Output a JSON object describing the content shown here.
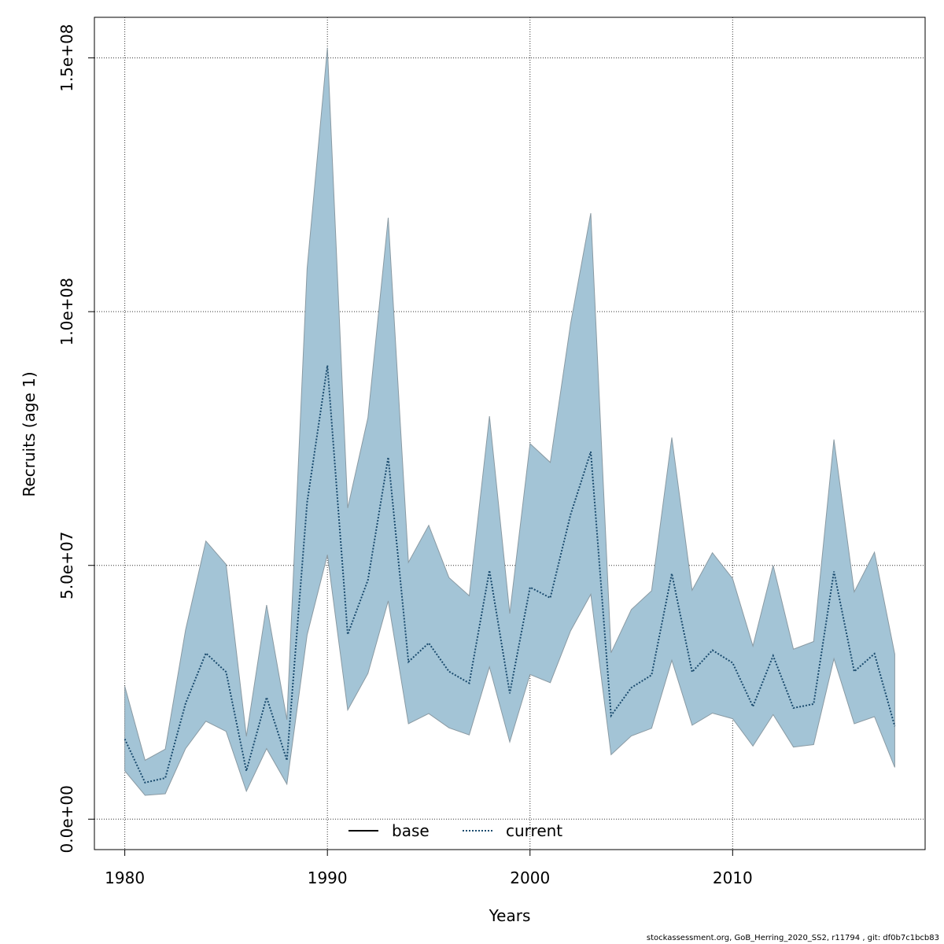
{
  "footer_note": "stockassessment.org, GoB_Herring_2020_SS2, r11794 , git: df0b7c1bcb83",
  "colors": {
    "band_fill": "#a3c4d6",
    "band_edge": "#8a9aa3",
    "current_line": "#1a4b6e",
    "base_line": "#000000",
    "grid": "#333333"
  },
  "chart_data": {
    "type": "area",
    "xlabel": "Years",
    "ylabel": "Recruits (age 1)",
    "xlim": [
      1978.5,
      2019.5
    ],
    "ylim": [
      -6000000,
      158000000
    ],
    "x_ticks": [
      1980,
      1990,
      2000,
      2010
    ],
    "x_tick_labels": [
      "1980",
      "1990",
      "2000",
      "2010"
    ],
    "y_ticks": [
      0,
      50000000,
      100000000,
      150000000
    ],
    "y_tick_labels": [
      "0.0e+00",
      "5.0e+07",
      "1.0e+08",
      "1.5e+08"
    ],
    "grid": true,
    "legend": {
      "placement": "bottom-center",
      "entries": [
        {
          "label": "base",
          "style": "solid"
        },
        {
          "label": "current",
          "style": "dotted"
        }
      ]
    },
    "x": [
      1980,
      1981,
      1982,
      1983,
      1984,
      1985,
      1986,
      1987,
      1988,
      1989,
      1990,
      1991,
      1992,
      1993,
      1994,
      1995,
      1996,
      1997,
      1998,
      1999,
      2000,
      2001,
      2002,
      2003,
      2004,
      2005,
      2006,
      2007,
      2008,
      2009,
      2010,
      2011,
      2012,
      2013,
      2014,
      2015,
      2016,
      2017,
      2018
    ],
    "series": [
      {
        "name": "current",
        "values": [
          15800000,
          7200000,
          8100000,
          22800000,
          32700000,
          29000000,
          9500000,
          24000000,
          11600000,
          62400000,
          89400000,
          36400000,
          47100000,
          71300000,
          31000000,
          34700000,
          29100000,
          26800000,
          49000000,
          24800000,
          45700000,
          43600000,
          60000000,
          72400000,
          20400000,
          25900000,
          28400000,
          48400000,
          29000000,
          33300000,
          30800000,
          22200000,
          32200000,
          21900000,
          22700000,
          48800000,
          29100000,
          32600000,
          18300000
        ]
      }
    ],
    "confidence_band": {
      "lower": [
        9500000,
        4700000,
        5000000,
        13900000,
        19300000,
        17300000,
        5500000,
        13900000,
        6900000,
        36300000,
        52100000,
        21500000,
        28700000,
        43000000,
        18800000,
        20800000,
        18000000,
        16600000,
        30000000,
        15200000,
        28500000,
        26900000,
        37100000,
        44300000,
        12700000,
        16400000,
        17900000,
        31300000,
        18500000,
        20900000,
        19800000,
        14400000,
        20600000,
        14200000,
        14700000,
        31600000,
        18800000,
        20200000,
        10200000
      ],
      "upper": [
        26200000,
        11600000,
        13800000,
        37300000,
        54800000,
        50200000,
        16300000,
        42200000,
        19600000,
        108500000,
        152000000,
        61300000,
        79100000,
        118500000,
        50600000,
        57900000,
        47600000,
        44000000,
        79400000,
        40500000,
        74000000,
        70300000,
        97600000,
        119400000,
        32800000,
        41300000,
        45000000,
        75200000,
        45100000,
        52500000,
        47400000,
        34100000,
        50000000,
        33500000,
        35000000,
        74800000,
        44800000,
        52600000,
        32500000
      ]
    }
  }
}
